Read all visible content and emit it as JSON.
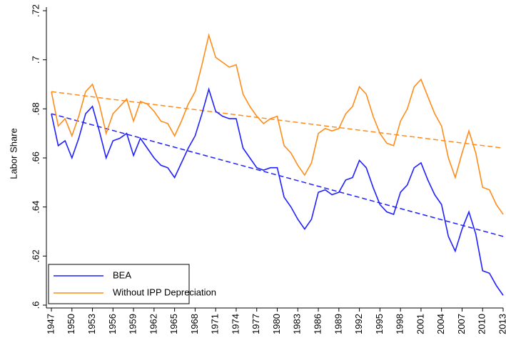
{
  "chart_data": {
    "type": "line",
    "ylabel": "Labor Share",
    "x": [
      1947,
      1948,
      1949,
      1950,
      1951,
      1952,
      1953,
      1954,
      1955,
      1956,
      1957,
      1958,
      1959,
      1960,
      1961,
      1962,
      1963,
      1964,
      1965,
      1966,
      1967,
      1968,
      1969,
      1970,
      1971,
      1972,
      1973,
      1974,
      1975,
      1976,
      1977,
      1978,
      1979,
      1980,
      1981,
      1982,
      1983,
      1984,
      1985,
      1986,
      1987,
      1988,
      1989,
      1990,
      1991,
      1992,
      1993,
      1994,
      1995,
      1996,
      1997,
      1998,
      1999,
      2000,
      2001,
      2002,
      2003,
      2004,
      2005,
      2006,
      2007,
      2008,
      2009,
      2010,
      2011,
      2012,
      2013
    ],
    "series": [
      {
        "name": "BEA",
        "color": "#1f1fff",
        "values": [
          0.678,
          0.665,
          0.667,
          0.66,
          0.668,
          0.678,
          0.681,
          0.671,
          0.66,
          0.667,
          0.668,
          0.67,
          0.661,
          0.668,
          0.664,
          0.66,
          0.657,
          0.656,
          0.652,
          0.658,
          0.664,
          0.669,
          0.678,
          0.688,
          0.679,
          0.677,
          0.676,
          0.676,
          0.664,
          0.66,
          0.656,
          0.655,
          0.656,
          0.656,
          0.644,
          0.64,
          0.635,
          0.631,
          0.635,
          0.646,
          0.647,
          0.645,
          0.646,
          0.651,
          0.652,
          0.659,
          0.656,
          0.648,
          0.641,
          0.638,
          0.637,
          0.646,
          0.649,
          0.656,
          0.658,
          0.651,
          0.645,
          0.641,
          0.628,
          0.622,
          0.631,
          0.638,
          0.629,
          0.614,
          0.613,
          0.608,
          0.604
        ]
      },
      {
        "name": "Without IPP Depreciation",
        "color": "#ff8c1a",
        "values": [
          0.687,
          0.673,
          0.676,
          0.669,
          0.677,
          0.687,
          0.69,
          0.682,
          0.67,
          0.678,
          0.681,
          0.684,
          0.675,
          0.683,
          0.682,
          0.679,
          0.675,
          0.674,
          0.669,
          0.675,
          0.682,
          0.687,
          0.698,
          0.71,
          0.701,
          0.699,
          0.697,
          0.698,
          0.686,
          0.681,
          0.677,
          0.674,
          0.676,
          0.677,
          0.665,
          0.662,
          0.657,
          0.653,
          0.658,
          0.67,
          0.672,
          0.671,
          0.672,
          0.678,
          0.681,
          0.689,
          0.686,
          0.677,
          0.67,
          0.666,
          0.665,
          0.675,
          0.68,
          0.689,
          0.692,
          0.685,
          0.678,
          0.673,
          0.66,
          0.652,
          0.662,
          0.671,
          0.662,
          0.648,
          0.647,
          0.641,
          0.637
        ]
      }
    ],
    "trendlines": [
      {
        "color": "#1f1fff",
        "x": [
          1947,
          2013
        ],
        "values": [
          0.678,
          0.628
        ]
      },
      {
        "color": "#ff8c1a",
        "x": [
          1947,
          2013
        ],
        "values": [
          0.687,
          0.664
        ]
      }
    ],
    "xlim": [
      1947,
      2013
    ],
    "xticks": [
      1947,
      1950,
      1953,
      1956,
      1959,
      1962,
      1965,
      1968,
      1971,
      1974,
      1977,
      1980,
      1983,
      1986,
      1989,
      1992,
      1995,
      1998,
      2001,
      2004,
      2007,
      2010,
      2013
    ],
    "ylim": [
      0.6,
      0.72
    ],
    "yticks": [
      {
        "value": 0.6,
        "label": ".6"
      },
      {
        "value": 0.62,
        "label": ".62"
      },
      {
        "value": 0.64,
        "label": ".64"
      },
      {
        "value": 0.66,
        "label": ".66"
      },
      {
        "value": 0.68,
        "label": ".68"
      },
      {
        "value": 0.7,
        "label": ".7"
      },
      {
        "value": 0.72,
        "label": ".72"
      }
    ],
    "legend": "bottom-left"
  }
}
